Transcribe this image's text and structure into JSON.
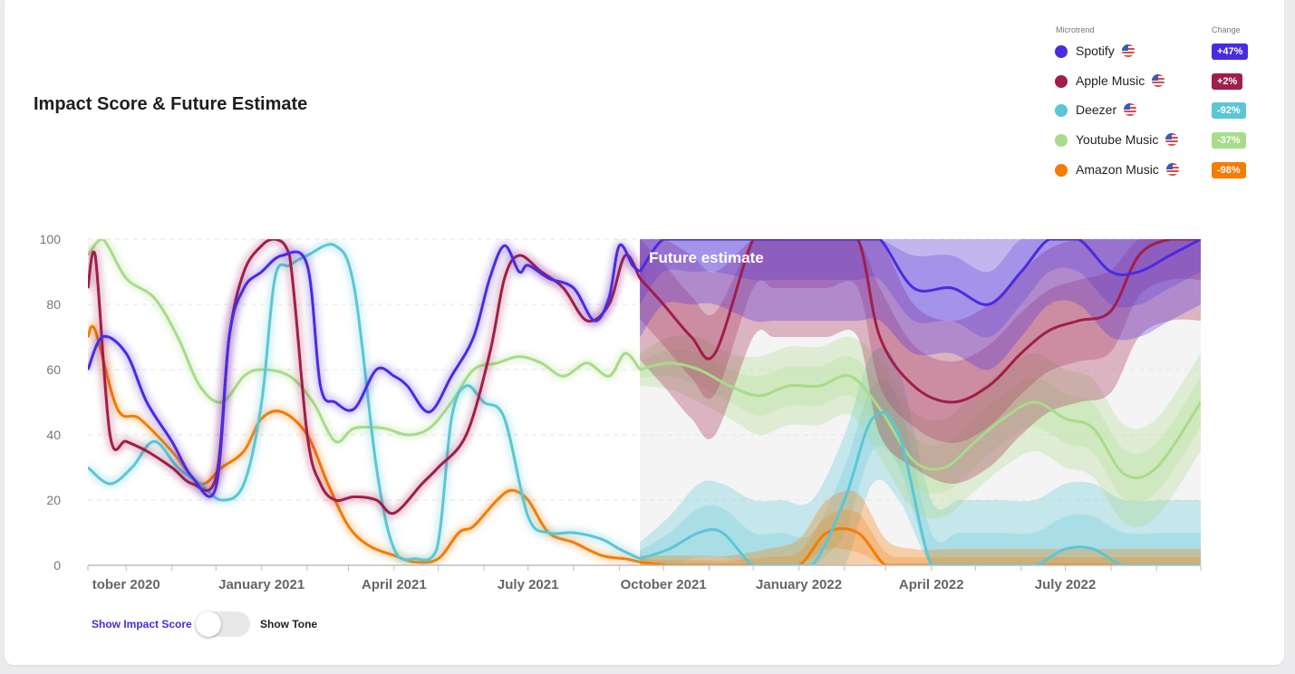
{
  "chart_data": {
    "type": "line",
    "title": "Impact Score & Future Estimate",
    "annotation": "Future estimate",
    "ylim": [
      0,
      100
    ],
    "yticks": [
      0,
      20,
      40,
      60,
      80,
      100
    ],
    "xlim": [
      "2020-09-05",
      "2022-10-01"
    ],
    "xticks": [
      {
        "date": "2020-10-01",
        "label": "tober 2020"
      },
      {
        "date": "2021-01-01",
        "label": "January 2021"
      },
      {
        "date": "2021-04-01",
        "label": "April 2021"
      },
      {
        "date": "2021-07-01",
        "label": "July 2021"
      },
      {
        "date": "2021-10-01",
        "label": "October 2021"
      },
      {
        "date": "2022-01-01",
        "label": "January 2022"
      },
      {
        "date": "2022-04-01",
        "label": "April 2022"
      },
      {
        "date": "2022-07-01",
        "label": "July 2022"
      }
    ],
    "forecast_start": "2021-09-15",
    "grid": true,
    "legend": {
      "position": "top-right",
      "header_name": "Microtrend",
      "header_change": "Change"
    },
    "series": [
      {
        "name": "Spotify",
        "color": "#4b2be0",
        "change": "+47%",
        "x": [
          "2020-09-05",
          "2020-09-15",
          "2020-10-01",
          "2020-10-15",
          "2020-11-01",
          "2020-11-15",
          "2020-12-01",
          "2020-12-10",
          "2020-12-20",
          "2021-01-01",
          "2021-01-15",
          "2021-02-01",
          "2021-02-10",
          "2021-02-20",
          "2021-03-05",
          "2021-03-20",
          "2021-04-01",
          "2021-04-10",
          "2021-04-25",
          "2021-05-10",
          "2021-05-25",
          "2021-06-05",
          "2021-06-15",
          "2021-06-25",
          "2021-07-01",
          "2021-07-15",
          "2021-08-01",
          "2021-08-15",
          "2021-08-25",
          "2021-09-01",
          "2021-09-10",
          "2021-09-15"
        ],
        "y": [
          60,
          70,
          65,
          50,
          38,
          27,
          24,
          70,
          85,
          90,
          95,
          92,
          55,
          50,
          48,
          60,
          58,
          55,
          47,
          58,
          70,
          88,
          98,
          90,
          92,
          88,
          85,
          75,
          82,
          98,
          92,
          90
        ],
        "fx": [
          "2021-09-15",
          "2021-10-01",
          "2021-10-20",
          "2021-11-05",
          "2021-12-01",
          "2021-12-15",
          "2022-01-01",
          "2022-01-20",
          "2022-02-10",
          "2022-02-25",
          "2022-03-20",
          "2022-04-15",
          "2022-05-10",
          "2022-06-01",
          "2022-06-20",
          "2022-07-10",
          "2022-08-01",
          "2022-08-20",
          "2022-09-10",
          "2022-10-01"
        ],
        "fy": [
          90,
          100,
          100,
          100,
          100,
          100,
          100,
          100,
          100,
          100,
          85,
          85,
          80,
          90,
          100,
          100,
          90,
          90,
          95,
          100
        ],
        "band": [
          20,
          20,
          20,
          20,
          25,
          25,
          25,
          25,
          25,
          25,
          20,
          20,
          20,
          20,
          20,
          20,
          20,
          20,
          20,
          20
        ]
      },
      {
        "name": "Apple Music",
        "color": "#a11d4b",
        "change": "+2%",
        "x": [
          "2020-09-05",
          "2020-09-10",
          "2020-09-20",
          "2020-10-01",
          "2020-10-15",
          "2020-11-01",
          "2020-11-15",
          "2020-12-01",
          "2020-12-10",
          "2020-12-20",
          "2021-01-01",
          "2021-01-10",
          "2021-01-20",
          "2021-02-01",
          "2021-02-10",
          "2021-02-20",
          "2021-03-05",
          "2021-03-20",
          "2021-04-01",
          "2021-04-20",
          "2021-05-01",
          "2021-05-20",
          "2021-06-05",
          "2021-06-15",
          "2021-06-25",
          "2021-07-10",
          "2021-07-25",
          "2021-08-10",
          "2021-08-25",
          "2021-09-05",
          "2021-09-15"
        ],
        "y": [
          85,
          95,
          40,
          38,
          35,
          30,
          25,
          27,
          70,
          90,
          98,
          100,
          95,
          40,
          25,
          20,
          21,
          20,
          16,
          25,
          30,
          40,
          65,
          88,
          95,
          90,
          85,
          75,
          80,
          95,
          88
        ],
        "fx": [
          "2021-09-15",
          "2021-10-01",
          "2021-10-20",
          "2021-11-05",
          "2021-12-01",
          "2021-12-15",
          "2022-01-01",
          "2022-01-20",
          "2022-02-10",
          "2022-02-25",
          "2022-03-20",
          "2022-04-15",
          "2022-05-10",
          "2022-06-01",
          "2022-06-20",
          "2022-07-10",
          "2022-08-01",
          "2022-08-20",
          "2022-09-10",
          "2022-10-01"
        ],
        "fy": [
          88,
          80,
          70,
          65,
          100,
          100,
          100,
          100,
          100,
          70,
          55,
          50,
          55,
          65,
          72,
          75,
          78,
          95,
          100,
          100
        ],
        "band": [
          25,
          25,
          25,
          25,
          30,
          30,
          30,
          30,
          30,
          30,
          25,
          25,
          25,
          25,
          25,
          25,
          25,
          25,
          25,
          25
        ]
      },
      {
        "name": "Deezer",
        "color": "#5bc6d6",
        "change": "-92%",
        "x": [
          "2020-09-05",
          "2020-09-20",
          "2020-10-05",
          "2020-10-20",
          "2020-11-05",
          "2020-11-20",
          "2020-12-05",
          "2020-12-20",
          "2021-01-01",
          "2021-01-10",
          "2021-01-20",
          "2021-02-01",
          "2021-02-20",
          "2021-03-05",
          "2021-03-20",
          "2021-04-01",
          "2021-04-15",
          "2021-04-30",
          "2021-05-10",
          "2021-05-20",
          "2021-06-01",
          "2021-06-15",
          "2021-07-01",
          "2021-07-15",
          "2021-08-01",
          "2021-08-20",
          "2021-09-01",
          "2021-09-15"
        ],
        "y": [
          30,
          25,
          30,
          38,
          30,
          25,
          20,
          25,
          50,
          88,
          92,
          95,
          98,
          85,
          30,
          5,
          2,
          5,
          45,
          55,
          50,
          45,
          15,
          10,
          10,
          8,
          5,
          2
        ],
        "fx": [
          "2021-09-15",
          "2021-10-05",
          "2021-10-25",
          "2021-11-10",
          "2021-12-01",
          "2021-12-20",
          "2022-01-10",
          "2022-02-01",
          "2022-02-20",
          "2022-03-10",
          "2022-04-01",
          "2022-04-20",
          "2022-05-15",
          "2022-06-10",
          "2022-07-01",
          "2022-07-20",
          "2022-08-10",
          "2022-09-10",
          "2022-10-01"
        ],
        "fy": [
          2,
          5,
          10,
          10,
          0,
          0,
          0,
          20,
          45,
          40,
          0,
          0,
          0,
          0,
          5,
          5,
          0,
          0,
          0
        ],
        "band": [
          5,
          10,
          15,
          15,
          20,
          20,
          20,
          20,
          20,
          20,
          20,
          20,
          20,
          20,
          20,
          20,
          20,
          20,
          20
        ]
      },
      {
        "name": "Youtube Music",
        "color": "#a8dc88",
        "change": "-37%",
        "x": [
          "2020-09-05",
          "2020-09-15",
          "2020-10-01",
          "2020-10-20",
          "2020-11-05",
          "2020-11-20",
          "2020-12-05",
          "2020-12-20",
          "2021-01-01",
          "2021-01-20",
          "2021-02-05",
          "2021-02-20",
          "2021-03-05",
          "2021-03-25",
          "2021-04-10",
          "2021-04-25",
          "2021-05-10",
          "2021-05-25",
          "2021-06-10",
          "2021-06-25",
          "2021-07-10",
          "2021-07-25",
          "2021-08-10",
          "2021-08-25",
          "2021-09-05",
          "2021-09-15"
        ],
        "y": [
          95,
          100,
          88,
          82,
          70,
          55,
          50,
          58,
          60,
          58,
          50,
          38,
          42,
          42,
          40,
          42,
          50,
          60,
          62,
          64,
          62,
          58,
          62,
          58,
          65,
          60
        ],
        "fx": [
          "2021-09-15",
          "2021-10-05",
          "2021-10-25",
          "2021-11-15",
          "2021-12-05",
          "2021-12-25",
          "2022-01-15",
          "2022-02-05",
          "2022-02-25",
          "2022-03-20",
          "2022-04-10",
          "2022-05-01",
          "2022-05-20",
          "2022-06-10",
          "2022-07-01",
          "2022-07-20",
          "2022-08-10",
          "2022-09-01",
          "2022-10-01"
        ],
        "fy": [
          60,
          62,
          60,
          55,
          52,
          55,
          55,
          58,
          48,
          32,
          30,
          38,
          45,
          50,
          45,
          42,
          28,
          30,
          50
        ],
        "band": [
          5,
          8,
          10,
          10,
          12,
          12,
          12,
          12,
          15,
          15,
          15,
          15,
          15,
          15,
          15,
          15,
          15,
          15,
          15
        ]
      },
      {
        "name": "Amazon Music",
        "color": "#f57c00",
        "change": "-98%",
        "x": [
          "2020-09-05",
          "2020-09-10",
          "2020-09-25",
          "2020-10-10",
          "2020-11-01",
          "2020-11-20",
          "2020-12-05",
          "2020-12-20",
          "2021-01-01",
          "2021-01-15",
          "2021-02-01",
          "2021-02-15",
          "2021-03-01",
          "2021-03-15",
          "2021-04-01",
          "2021-04-15",
          "2021-05-01",
          "2021-05-15",
          "2021-05-25",
          "2021-06-10",
          "2021-06-20",
          "2021-07-01",
          "2021-07-15",
          "2021-08-01",
          "2021-08-20",
          "2021-09-05",
          "2021-09-15"
        ],
        "y": [
          70,
          72,
          48,
          45,
          35,
          25,
          30,
          35,
          45,
          47,
          40,
          25,
          12,
          6,
          3,
          1,
          2,
          10,
          12,
          20,
          23,
          20,
          10,
          7,
          3,
          2,
          1
        ],
        "fx": [
          "2021-09-15",
          "2021-10-05",
          "2021-10-25",
          "2021-11-15",
          "2021-12-10",
          "2022-01-01",
          "2022-01-20",
          "2022-02-10",
          "2022-03-01",
          "2022-03-20",
          "2022-04-20",
          "2022-06-01",
          "2022-07-10",
          "2022-08-20",
          "2022-10-01"
        ],
        "fy": [
          1,
          0,
          0,
          0,
          0,
          0,
          10,
          10,
          0,
          0,
          0,
          0,
          0,
          0,
          0
        ],
        "band": [
          2,
          3,
          3,
          3,
          5,
          8,
          10,
          12,
          8,
          5,
          5,
          5,
          5,
          5,
          5
        ]
      }
    ]
  },
  "controls": {
    "show_impact_score": "Show Impact Score",
    "show_tone": "Show Tone"
  }
}
